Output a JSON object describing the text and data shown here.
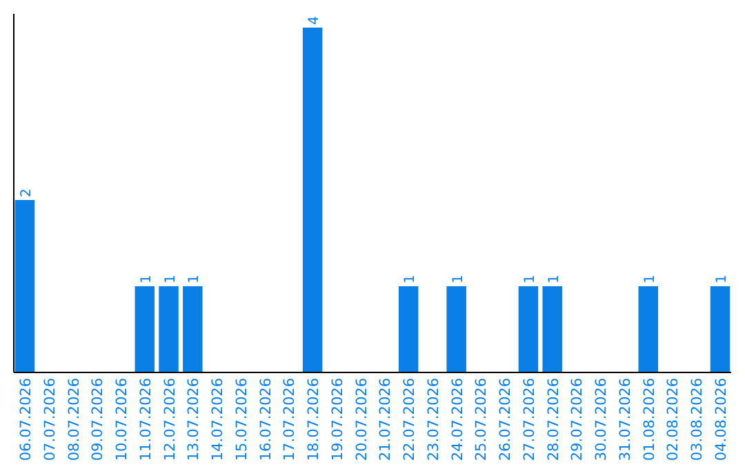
{
  "chart_data": {
    "type": "bar",
    "categories": [
      "06.07.2026",
      "07.07.2026",
      "08.07.2026",
      "09.07.2026",
      "10.07.2026",
      "11.07.2026",
      "12.07.2026",
      "13.07.2026",
      "14.07.2026",
      "15.07.2026",
      "16.07.2026",
      "17.07.2026",
      "18.07.2026",
      "19.07.2026",
      "20.07.2026",
      "21.07.2026",
      "22.07.2026",
      "23.07.2026",
      "24.07.2026",
      "25.07.2026",
      "26.07.2026",
      "27.07.2026",
      "28.07.2026",
      "29.07.2026",
      "30.07.2026",
      "31.07.2026",
      "01.08.2026",
      "02.08.2026",
      "03.08.2026",
      "04.08.2026"
    ],
    "values": [
      2,
      0,
      0,
      0,
      0,
      1,
      1,
      1,
      0,
      0,
      0,
      0,
      4,
      0,
      0,
      0,
      1,
      0,
      1,
      0,
      0,
      1,
      1,
      0,
      0,
      0,
      1,
      0,
      0,
      1
    ],
    "value_labels": [
      "2",
      null,
      null,
      null,
      null,
      "1",
      "1",
      "1",
      null,
      null,
      null,
      null,
      "4",
      null,
      null,
      null,
      "1",
      null,
      "1",
      null,
      null,
      "1",
      "1",
      null,
      null,
      null,
      "1",
      null,
      null,
      "1"
    ],
    "color": "#0a7fe6",
    "tick_labels": "x"
  }
}
